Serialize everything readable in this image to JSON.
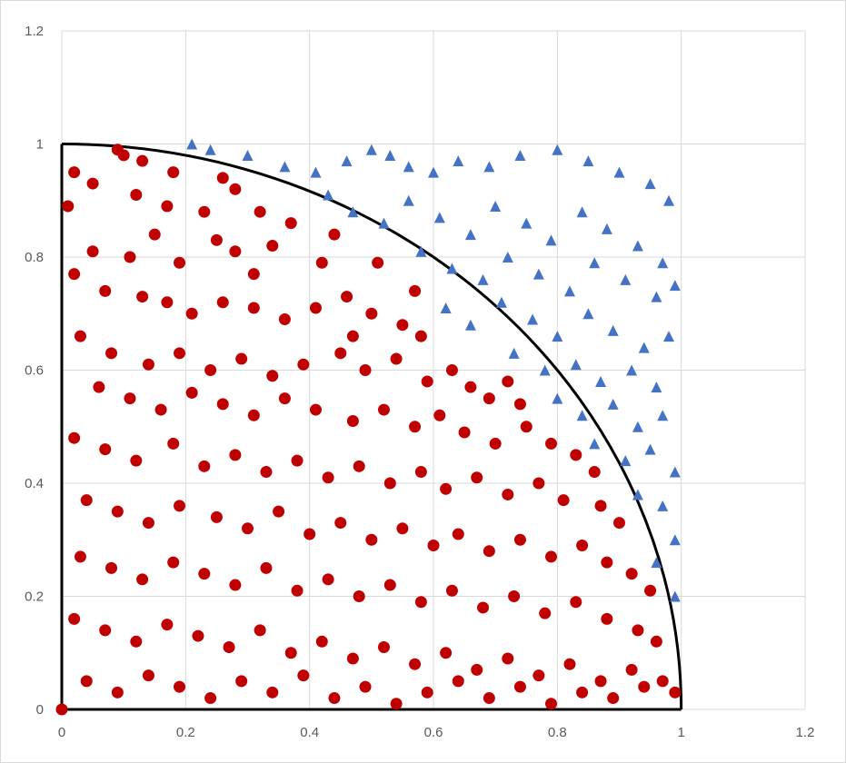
{
  "chart_data": {
    "type": "scatter",
    "title": "",
    "xlabel": "",
    "ylabel": "",
    "xlim": [
      0,
      1.2
    ],
    "ylim": [
      0,
      1.2
    ],
    "x_ticks": [
      "0",
      "0.2",
      "0.4",
      "0.6",
      "0.8",
      "1",
      "1.2"
    ],
    "y_ticks": [
      "0",
      "0.2",
      "0.4",
      "0.6",
      "0.8",
      "1",
      "1.2"
    ],
    "grid": true,
    "legend": "none",
    "reference_curves": [
      {
        "kind": "quarter-circle",
        "equation": "x^2 + y^2 = 1",
        "color": "#000000"
      },
      {
        "kind": "axis-line",
        "from": [
          0,
          0
        ],
        "to": [
          0,
          1
        ],
        "color": "#000000"
      },
      {
        "kind": "axis-line",
        "from": [
          0,
          0
        ],
        "to": [
          1,
          0
        ],
        "color": "#000000"
      }
    ],
    "series": [
      {
        "marker": "circle",
        "color": "#c00000",
        "points": [
          [
            0.09,
            0.99
          ],
          [
            0.1,
            0.98
          ],
          [
            0.13,
            0.97
          ],
          [
            0.02,
            0.95
          ],
          [
            0.05,
            0.93
          ],
          [
            0.18,
            0.95
          ],
          [
            0.26,
            0.94
          ],
          [
            0.28,
            0.92
          ],
          [
            0.12,
            0.91
          ],
          [
            0.17,
            0.89
          ],
          [
            0.23,
            0.88
          ],
          [
            0.32,
            0.88
          ],
          [
            0.37,
            0.86
          ],
          [
            0.25,
            0.83
          ],
          [
            0.05,
            0.81
          ],
          [
            0.11,
            0.8
          ],
          [
            0.19,
            0.79
          ],
          [
            0.28,
            0.81
          ],
          [
            0.34,
            0.82
          ],
          [
            0.42,
            0.79
          ],
          [
            0.02,
            0.77
          ],
          [
            0.07,
            0.74
          ],
          [
            0.13,
            0.73
          ],
          [
            0.17,
            0.72
          ],
          [
            0.21,
            0.7
          ],
          [
            0.26,
            0.72
          ],
          [
            0.31,
            0.71
          ],
          [
            0.36,
            0.69
          ],
          [
            0.41,
            0.71
          ],
          [
            0.46,
            0.73
          ],
          [
            0.5,
            0.7
          ],
          [
            0.55,
            0.68
          ],
          [
            0.58,
            0.66
          ],
          [
            0.03,
            0.66
          ],
          [
            0.08,
            0.63
          ],
          [
            0.14,
            0.61
          ],
          [
            0.19,
            0.63
          ],
          [
            0.24,
            0.6
          ],
          [
            0.29,
            0.62
          ],
          [
            0.34,
            0.59
          ],
          [
            0.39,
            0.61
          ],
          [
            0.45,
            0.63
          ],
          [
            0.49,
            0.6
          ],
          [
            0.54,
            0.62
          ],
          [
            0.59,
            0.58
          ],
          [
            0.63,
            0.6
          ],
          [
            0.66,
            0.57
          ],
          [
            0.69,
            0.55
          ],
          [
            0.72,
            0.58
          ],
          [
            0.74,
            0.54
          ],
          [
            0.06,
            0.57
          ],
          [
            0.11,
            0.55
          ],
          [
            0.16,
            0.53
          ],
          [
            0.21,
            0.56
          ],
          [
            0.26,
            0.54
          ],
          [
            0.31,
            0.52
          ],
          [
            0.36,
            0.55
          ],
          [
            0.41,
            0.53
          ],
          [
            0.47,
            0.51
          ],
          [
            0.52,
            0.53
          ],
          [
            0.57,
            0.5
          ],
          [
            0.61,
            0.52
          ],
          [
            0.65,
            0.49
          ],
          [
            0.7,
            0.47
          ],
          [
            0.75,
            0.5
          ],
          [
            0.79,
            0.47
          ],
          [
            0.83,
            0.45
          ],
          [
            0.86,
            0.42
          ],
          [
            0.02,
            0.48
          ],
          [
            0.07,
            0.46
          ],
          [
            0.12,
            0.44
          ],
          [
            0.18,
            0.47
          ],
          [
            0.23,
            0.43
          ],
          [
            0.28,
            0.45
          ],
          [
            0.33,
            0.42
          ],
          [
            0.38,
            0.44
          ],
          [
            0.43,
            0.41
          ],
          [
            0.48,
            0.43
          ],
          [
            0.53,
            0.4
          ],
          [
            0.58,
            0.42
          ],
          [
            0.62,
            0.39
          ],
          [
            0.67,
            0.41
          ],
          [
            0.72,
            0.38
          ],
          [
            0.77,
            0.4
          ],
          [
            0.81,
            0.37
          ],
          [
            0.87,
            0.36
          ],
          [
            0.9,
            0.33
          ],
          [
            0.04,
            0.37
          ],
          [
            0.09,
            0.35
          ],
          [
            0.14,
            0.33
          ],
          [
            0.19,
            0.36
          ],
          [
            0.25,
            0.34
          ],
          [
            0.3,
            0.32
          ],
          [
            0.35,
            0.35
          ],
          [
            0.4,
            0.31
          ],
          [
            0.45,
            0.33
          ],
          [
            0.5,
            0.3
          ],
          [
            0.55,
            0.32
          ],
          [
            0.6,
            0.29
          ],
          [
            0.64,
            0.31
          ],
          [
            0.69,
            0.28
          ],
          [
            0.74,
            0.3
          ],
          [
            0.79,
            0.27
          ],
          [
            0.84,
            0.29
          ],
          [
            0.88,
            0.26
          ],
          [
            0.92,
            0.24
          ],
          [
            0.95,
            0.21
          ],
          [
            0.03,
            0.27
          ],
          [
            0.08,
            0.25
          ],
          [
            0.13,
            0.23
          ],
          [
            0.18,
            0.26
          ],
          [
            0.23,
            0.24
          ],
          [
            0.28,
            0.22
          ],
          [
            0.33,
            0.25
          ],
          [
            0.38,
            0.21
          ],
          [
            0.43,
            0.23
          ],
          [
            0.48,
            0.2
          ],
          [
            0.53,
            0.22
          ],
          [
            0.58,
            0.19
          ],
          [
            0.63,
            0.21
          ],
          [
            0.68,
            0.18
          ],
          [
            0.73,
            0.2
          ],
          [
            0.78,
            0.17
          ],
          [
            0.83,
            0.19
          ],
          [
            0.88,
            0.16
          ],
          [
            0.93,
            0.14
          ],
          [
            0.96,
            0.12
          ],
          [
            0.02,
            0.16
          ],
          [
            0.07,
            0.14
          ],
          [
            0.12,
            0.12
          ],
          [
            0.17,
            0.15
          ],
          [
            0.22,
            0.13
          ],
          [
            0.27,
            0.11
          ],
          [
            0.32,
            0.14
          ],
          [
            0.37,
            0.1
          ],
          [
            0.42,
            0.12
          ],
          [
            0.47,
            0.09
          ],
          [
            0.52,
            0.11
          ],
          [
            0.57,
            0.08
          ],
          [
            0.62,
            0.1
          ],
          [
            0.67,
            0.07
          ],
          [
            0.72,
            0.09
          ],
          [
            0.77,
            0.06
          ],
          [
            0.82,
            0.08
          ],
          [
            0.87,
            0.05
          ],
          [
            0.92,
            0.07
          ],
          [
            0.97,
            0.05
          ],
          [
            0.04,
            0.05
          ],
          [
            0.09,
            0.03
          ],
          [
            0.14,
            0.06
          ],
          [
            0.19,
            0.04
          ],
          [
            0.24,
            0.02
          ],
          [
            0.29,
            0.05
          ],
          [
            0.34,
            0.03
          ],
          [
            0.39,
            0.06
          ],
          [
            0.44,
            0.02
          ],
          [
            0.49,
            0.04
          ],
          [
            0.54,
            0.01
          ],
          [
            0.59,
            0.03
          ],
          [
            0.64,
            0.05
          ],
          [
            0.69,
            0.02
          ],
          [
            0.74,
            0.04
          ],
          [
            0.79,
            0.01
          ],
          [
            0.84,
            0.03
          ],
          [
            0.89,
            0.02
          ],
          [
            0.94,
            0.04
          ],
          [
            0.99,
            0.03
          ],
          [
            0,
            0
          ],
          [
            0.01,
            0.89
          ],
          [
            0.15,
            0.84
          ],
          [
            0.31,
            0.77
          ],
          [
            0.47,
            0.66
          ],
          [
            0.57,
            0.74
          ],
          [
            0.44,
            0.84
          ],
          [
            0.51,
            0.79
          ]
        ]
      },
      {
        "marker": "triangle",
        "color": "#4472c4",
        "points": [
          [
            0.21,
            1
          ],
          [
            0.24,
            0.99
          ],
          [
            0.3,
            0.98
          ],
          [
            0.36,
            0.96
          ],
          [
            0.41,
            0.95
          ],
          [
            0.46,
            0.97
          ],
          [
            0.5,
            0.99
          ],
          [
            0.53,
            0.98
          ],
          [
            0.56,
            0.96
          ],
          [
            0.6,
            0.95
          ],
          [
            0.64,
            0.97
          ],
          [
            0.69,
            0.96
          ],
          [
            0.74,
            0.98
          ],
          [
            0.8,
            0.99
          ],
          [
            0.85,
            0.97
          ],
          [
            0.9,
            0.95
          ],
          [
            0.95,
            0.93
          ],
          [
            0.98,
            0.9
          ],
          [
            0.43,
            0.91
          ],
          [
            0.47,
            0.88
          ],
          [
            0.52,
            0.86
          ],
          [
            0.56,
            0.9
          ],
          [
            0.61,
            0.87
          ],
          [
            0.66,
            0.84
          ],
          [
            0.7,
            0.89
          ],
          [
            0.75,
            0.86
          ],
          [
            0.79,
            0.83
          ],
          [
            0.84,
            0.88
          ],
          [
            0.88,
            0.85
          ],
          [
            0.93,
            0.82
          ],
          [
            0.97,
            0.79
          ],
          [
            0.58,
            0.81
          ],
          [
            0.63,
            0.78
          ],
          [
            0.68,
            0.76
          ],
          [
            0.72,
            0.8
          ],
          [
            0.77,
            0.77
          ],
          [
            0.82,
            0.74
          ],
          [
            0.86,
            0.79
          ],
          [
            0.91,
            0.76
          ],
          [
            0.96,
            0.73
          ],
          [
            0.99,
            0.75
          ],
          [
            0.62,
            0.71
          ],
          [
            0.66,
            0.68
          ],
          [
            0.71,
            0.72
          ],
          [
            0.76,
            0.69
          ],
          [
            0.8,
            0.66
          ],
          [
            0.85,
            0.7
          ],
          [
            0.89,
            0.67
          ],
          [
            0.94,
            0.64
          ],
          [
            0.98,
            0.66
          ],
          [
            0.73,
            0.63
          ],
          [
            0.78,
            0.6
          ],
          [
            0.83,
            0.61
          ],
          [
            0.87,
            0.58
          ],
          [
            0.92,
            0.6
          ],
          [
            0.96,
            0.57
          ],
          [
            0.8,
            0.55
          ],
          [
            0.84,
            0.52
          ],
          [
            0.89,
            0.54
          ],
          [
            0.93,
            0.5
          ],
          [
            0.97,
            0.52
          ],
          [
            0.86,
            0.47
          ],
          [
            0.91,
            0.44
          ],
          [
            0.95,
            0.46
          ],
          [
            0.99,
            0.42
          ],
          [
            0.93,
            0.38
          ],
          [
            0.97,
            0.36
          ],
          [
            0.99,
            0.3
          ],
          [
            0.96,
            0.26
          ],
          [
            0.99,
            0.2
          ]
        ]
      }
    ]
  }
}
